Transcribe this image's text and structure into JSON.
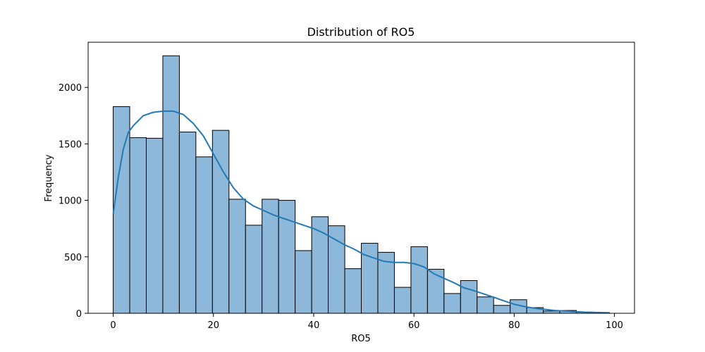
{
  "chart_data": {
    "type": "bar",
    "title": "Distribution of RO5",
    "xlabel": "RO5",
    "ylabel": "Frequency",
    "xlim": [
      -5,
      104
    ],
    "ylim": [
      0,
      2400
    ],
    "xticks": [
      0,
      20,
      40,
      60,
      80,
      100
    ],
    "yticks": [
      0,
      500,
      1000,
      1500,
      2000
    ],
    "grid": false,
    "bar_color": "#8db8da",
    "edge_color": "#000000",
    "kde_color": "#2379b5",
    "bins": {
      "start": 0,
      "width": 3.3,
      "counts": [
        1830,
        1555,
        1550,
        2280,
        1605,
        1385,
        1620,
        1010,
        780,
        1010,
        1000,
        555,
        855,
        775,
        395,
        620,
        540,
        230,
        590,
        390,
        175,
        290,
        145,
        70,
        120,
        50,
        20,
        25,
        10,
        5
      ]
    },
    "kde": {
      "x": [
        0,
        1,
        2,
        3,
        4,
        6,
        8,
        10,
        12,
        14,
        16,
        18,
        20,
        22,
        24,
        26,
        28,
        30,
        32,
        34,
        36,
        38,
        40,
        42,
        44,
        46,
        48,
        50,
        52,
        54,
        56,
        58,
        60,
        62,
        64,
        66,
        68,
        70,
        72,
        74,
        76,
        78,
        80,
        82,
        84,
        86,
        88,
        90,
        92,
        94,
        96,
        99
      ],
      "y": [
        880,
        1200,
        1450,
        1600,
        1660,
        1750,
        1780,
        1790,
        1790,
        1760,
        1680,
        1570,
        1410,
        1250,
        1110,
        1010,
        950,
        910,
        870,
        840,
        810,
        780,
        750,
        710,
        660,
        610,
        570,
        520,
        490,
        460,
        450,
        450,
        440,
        410,
        350,
        310,
        270,
        225,
        200,
        170,
        140,
        110,
        80,
        60,
        45,
        35,
        25,
        20,
        15,
        10,
        8,
        5
      ]
    }
  }
}
